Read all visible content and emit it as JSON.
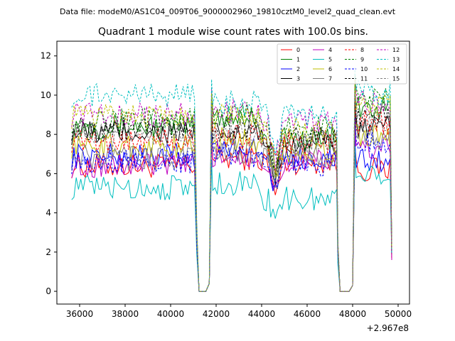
{
  "header": {
    "data_file_label": "Data file: modeM0/AS1C04_009T06_9000002960_19810cztM0_level2_quad_clean.evt",
    "title": "Quadrant 1 module wise count rates with 100.0s bins."
  },
  "chart_data": {
    "type": "line",
    "title": "Quadrant 1 module wise count rates with 100.0s bins.",
    "xlabel": "",
    "ylabel": "",
    "x_offset_label": "+2.967e8",
    "xlim": [
      35000,
      50500
    ],
    "ylim": [
      -0.65,
      12.75
    ],
    "x_ticks": [
      36000,
      38000,
      40000,
      42000,
      44000,
      46000,
      48000,
      50000
    ],
    "y_ticks": [
      0,
      2,
      4,
      6,
      8,
      10,
      12
    ],
    "legend_position": "top-right",
    "legend_columns": 4,
    "gaps": [
      [
        41150,
        41750
      ],
      [
        47400,
        48100
      ]
    ],
    "series": [
      {
        "name": "0",
        "color": "#ff0000",
        "style": "solid",
        "levels": [
          6.4,
          6.8,
          6.6,
          6.2
        ],
        "transient": 4.8
      },
      {
        "name": "1",
        "color": "#008000",
        "style": "solid",
        "levels": [
          8.4,
          8.9,
          7.8,
          9.3
        ],
        "transient": 6.3
      },
      {
        "name": "2",
        "color": "#0000ff",
        "style": "solid",
        "levels": [
          6.9,
          7.2,
          6.8,
          6.6
        ],
        "transient": 5.3
      },
      {
        "name": "3",
        "color": "#000000",
        "style": "solid",
        "levels": [
          8.1,
          8.0,
          7.6,
          8.3
        ],
        "transient": 5.8
      },
      {
        "name": "4",
        "color": "#bf00bf",
        "style": "solid",
        "levels": [
          6.4,
          6.9,
          6.6,
          7.3
        ],
        "transient": 5.0
      },
      {
        "name": "5",
        "color": "#00bfbf",
        "style": "solid",
        "levels": [
          5.3,
          5.5,
          4.7,
          6.1
        ],
        "transient": 4.0
      },
      {
        "name": "6",
        "color": "#bfbf00",
        "style": "solid",
        "levels": [
          7.4,
          7.7,
          7.2,
          7.9
        ],
        "transient": 5.8
      },
      {
        "name": "7",
        "color": "#808080",
        "style": "solid",
        "levels": [
          6.8,
          7.1,
          6.9,
          7.8
        ],
        "transient": 5.5
      },
      {
        "name": "8",
        "color": "#ff0000",
        "style": "dashed",
        "levels": [
          7.7,
          7.9,
          7.6,
          8.6
        ],
        "transient": 6.4
      },
      {
        "name": "9",
        "color": "#008000",
        "style": "dashed",
        "levels": [
          8.7,
          9.0,
          8.4,
          9.8
        ],
        "transient": 6.2
      },
      {
        "name": "10",
        "color": "#0000ff",
        "style": "dashed",
        "levels": [
          6.6,
          6.9,
          6.5,
          7.6
        ],
        "transient": 5.1
      },
      {
        "name": "11",
        "color": "#000000",
        "style": "dashed",
        "levels": [
          8.3,
          8.2,
          7.9,
          8.9
        ],
        "transient": 6.0
      },
      {
        "name": "12",
        "color": "#bf00bf",
        "style": "dashed",
        "levels": [
          9.0,
          9.2,
          8.7,
          9.6
        ],
        "transient": 6.6
      },
      {
        "name": "13",
        "color": "#00bfbf",
        "style": "dashed",
        "levels": [
          10.0,
          9.6,
          8.9,
          10.1
        ],
        "transient": 6.8
      },
      {
        "name": "14",
        "color": "#bfbf00",
        "style": "dashed",
        "levels": [
          8.9,
          8.9,
          8.2,
          9.5
        ],
        "transient": 6.3
      },
      {
        "name": "15",
        "color": "#808080",
        "style": "dashed",
        "levels": [
          7.9,
          8.1,
          7.6,
          8.8
        ],
        "transient": 5.7
      }
    ]
  }
}
